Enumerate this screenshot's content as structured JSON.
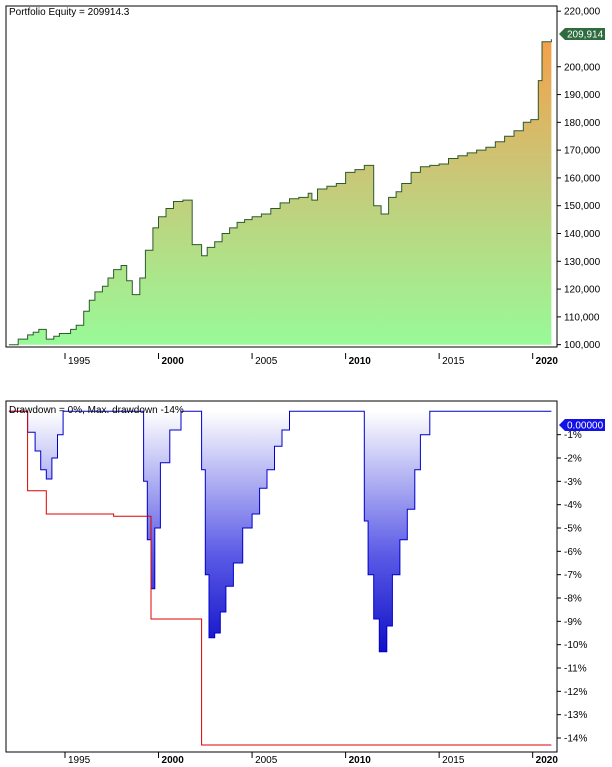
{
  "chart_data": [
    {
      "type": "area",
      "title": "Portfolio Equity = 209914.3",
      "current_value_label": "209,914",
      "ylim": [
        97000,
        221500
      ],
      "y_ticks": [
        {
          "v": 220000,
          "label": "220,000"
        },
        {
          "v": 200000,
          "label": "200,000"
        },
        {
          "v": 190000,
          "label": "190,000"
        },
        {
          "v": 180000,
          "label": "180,000"
        },
        {
          "v": 170000,
          "label": "170,000"
        },
        {
          "v": 160000,
          "label": "160,000"
        },
        {
          "v": 150000,
          "label": "150,000"
        },
        {
          "v": 140000,
          "label": "140,000"
        },
        {
          "v": 130000,
          "label": "130,000"
        },
        {
          "v": 120000,
          "label": "120,000"
        },
        {
          "v": 110000,
          "label": "110,000"
        },
        {
          "v": 100000,
          "label": "100,000"
        }
      ],
      "x_ticks": [
        {
          "v": 1995,
          "label": "1995",
          "bold": false
        },
        {
          "v": 2000,
          "label": "2000",
          "bold": true
        },
        {
          "v": 2005,
          "label": "2005",
          "bold": false
        },
        {
          "v": 2010,
          "label": "2010",
          "bold": true
        },
        {
          "v": 2015,
          "label": "2015",
          "bold": false
        },
        {
          "v": 2020,
          "label": "2020",
          "bold": true
        }
      ],
      "x": [
        1992.0,
        1992.5,
        1993.0,
        1993.3,
        1993.6,
        1994.0,
        1994.4,
        1994.7,
        1995.0,
        1995.3,
        1995.6,
        1996.0,
        1996.3,
        1996.6,
        1997.0,
        1997.3,
        1997.6,
        1998.0,
        1998.3,
        1998.6,
        1999.0,
        1999.3,
        1999.7,
        2000.0,
        2000.4,
        2000.8,
        2001.3,
        2001.8,
        2002.3,
        2002.6,
        2003.0,
        2003.4,
        2003.8,
        2004.2,
        2004.6,
        2005.0,
        2005.5,
        2006.0,
        2006.5,
        2007.0,
        2007.5,
        2008.0,
        2008.2,
        2008.5,
        2009.0,
        2009.5,
        2010.0,
        2010.5,
        2011.0,
        2011.5,
        2011.9,
        2012.3,
        2012.7,
        2013.0,
        2013.5,
        2014.0,
        2014.5,
        2015.0,
        2015.5,
        2016.0,
        2016.5,
        2017.0,
        2017.5,
        2018.0,
        2018.5,
        2019.0,
        2019.5,
        2019.9,
        2020.3,
        2020.5,
        2021.0
      ],
      "values": [
        100000,
        102000,
        103500,
        104500,
        105500,
        102000,
        103000,
        104000,
        104000,
        105500,
        107000,
        112000,
        116000,
        119000,
        121000,
        124000,
        127000,
        128500,
        123000,
        118000,
        124000,
        134000,
        142000,
        146000,
        149000,
        151500,
        152000,
        136000,
        132000,
        135000,
        137000,
        140000,
        142000,
        144000,
        145000,
        146000,
        147000,
        149000,
        151000,
        152500,
        153000,
        154500,
        152000,
        156000,
        157000,
        158000,
        162000,
        163000,
        164500,
        150000,
        147000,
        153000,
        155000,
        158000,
        162000,
        164000,
        164500,
        165000,
        167000,
        168000,
        169000,
        170000,
        171000,
        173000,
        175000,
        177000,
        180000,
        181000,
        195000,
        209000,
        209914
      ]
    },
    {
      "type": "area",
      "title": "Drawdown = 0%, Max. drawdown -14%",
      "current_value_label": "0.00000",
      "ylim": [
        -14.6,
        0.4
      ],
      "y_ticks": [
        {
          "v": -1,
          "label": "-1%"
        },
        {
          "v": -2,
          "label": "-2%"
        },
        {
          "v": -3,
          "label": "-3%"
        },
        {
          "v": -4,
          "label": "-4%"
        },
        {
          "v": -5,
          "label": "-5%"
        },
        {
          "v": -6,
          "label": "-6%"
        },
        {
          "v": -7,
          "label": "-7%"
        },
        {
          "v": -8,
          "label": "-8%"
        },
        {
          "v": -9,
          "label": "-9%"
        },
        {
          "v": -10,
          "label": "-10%"
        },
        {
          "v": -11,
          "label": "-11%"
        },
        {
          "v": -12,
          "label": "-12%"
        },
        {
          "v": -13,
          "label": "-13%"
        },
        {
          "v": -14,
          "label": "-14%"
        }
      ],
      "x_ticks": [
        {
          "v": 1995,
          "label": "1995",
          "bold": false
        },
        {
          "v": 2000,
          "label": "2000",
          "bold": true
        },
        {
          "v": 2005,
          "label": "2005",
          "bold": false
        },
        {
          "v": 2010,
          "label": "2010",
          "bold": true
        },
        {
          "v": 2015,
          "label": "2015",
          "bold": false
        },
        {
          "v": 2020,
          "label": "2020",
          "bold": true
        }
      ],
      "x": [
        1992.0,
        1992.8,
        1993.0,
        1993.4,
        1993.7,
        1994.0,
        1994.3,
        1994.6,
        1994.9,
        1995.3,
        1995.7,
        1996.3,
        1996.8,
        1997.3,
        1998.0,
        1998.6,
        1999.2,
        1999.4,
        1999.6,
        1999.8,
        2000.1,
        2000.6,
        2001.2,
        2001.7,
        2002.0,
        2002.3,
        2002.5,
        2002.7,
        2003.0,
        2003.3,
        2003.6,
        2004.0,
        2004.5,
        2005.0,
        2005.4,
        2005.8,
        2006.2,
        2006.6,
        2007.0,
        2007.3,
        2007.6,
        2008.0,
        2008.8,
        2009.6,
        2010.5,
        2011.0,
        2011.2,
        2011.5,
        2011.8,
        2012.2,
        2012.5,
        2012.9,
        2013.3,
        2013.7,
        2014.0,
        2014.5,
        2015.0,
        2016.0,
        2017.0,
        2018.0,
        2019.0,
        2019.8,
        2020.2,
        2021.0
      ],
      "values": [
        0,
        0,
        -0.9,
        -1.7,
        -2.5,
        -2.9,
        -2.0,
        -1.0,
        0,
        0,
        0,
        0,
        0,
        0,
        0,
        0,
        -3.0,
        -5.5,
        -7.6,
        -5.0,
        -2.2,
        -0.8,
        0,
        0,
        0,
        -2.5,
        -7.0,
        -9.7,
        -9.5,
        -8.6,
        -7.5,
        -6.5,
        -5.0,
        -4.4,
        -3.3,
        -2.5,
        -1.5,
        -0.8,
        0,
        0,
        0,
        0,
        0,
        0,
        0,
        -4.7,
        -7.0,
        -8.9,
        -10.3,
        -9.2,
        -7.0,
        -5.5,
        -4.2,
        -2.5,
        -1.0,
        0,
        0,
        0,
        0,
        0,
        0,
        0,
        0,
        0
      ],
      "max_drawdown_envelope": [
        {
          "x": 1992.0,
          "y": 0
        },
        {
          "x": 1993.0,
          "y": 0
        },
        {
          "x": 1993.0,
          "y": -3.4
        },
        {
          "x": 1994.0,
          "y": -3.4
        },
        {
          "x": 1994.0,
          "y": -4.4
        },
        {
          "x": 1997.6,
          "y": -4.4
        },
        {
          "x": 1997.6,
          "y": -4.5
        },
        {
          "x": 1999.6,
          "y": -4.5
        },
        {
          "x": 1999.6,
          "y": -8.9
        },
        {
          "x": 2002.3,
          "y": -8.9
        },
        {
          "x": 2002.3,
          "y": -14.3
        },
        {
          "x": 2021.0,
          "y": -14.3
        }
      ]
    }
  ]
}
